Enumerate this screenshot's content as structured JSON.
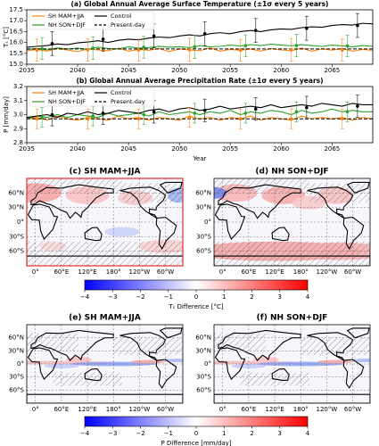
{
  "chart_data": [
    {
      "type": "line",
      "title": "(a) Global Annual Average Surface Temperature (±1σ every 5 years)",
      "y_label": "Tₛ [°C]",
      "x": [
        2035,
        2036,
        2037,
        2038,
        2039,
        2040,
        2041,
        2042,
        2043,
        2044,
        2045,
        2046,
        2047,
        2048,
        2049,
        2050,
        2051,
        2052,
        2053,
        2054,
        2055,
        2056,
        2057,
        2058,
        2059,
        2060,
        2061,
        2062,
        2063,
        2064,
        2065,
        2066,
        2067,
        2068,
        2069
      ],
      "xlim": [
        2035,
        2069
      ],
      "xticks": [
        2035,
        2040,
        2045,
        2050,
        2055,
        2060,
        2065
      ],
      "ylim": [
        15.0,
        17.5
      ],
      "yticks": [
        {
          "value": 15.0,
          "label": "15.0"
        },
        15.5,
        {
          "value": 16.0,
          "label": "16.0"
        },
        16.5,
        {
          "value": 17.0,
          "label": "17.0"
        },
        17.5
      ],
      "series": [
        {
          "name": "SH MAM+JJA",
          "color": "#ff7f0e",
          "values": [
            15.62,
            15.68,
            15.6,
            15.72,
            15.65,
            15.58,
            15.7,
            15.66,
            15.62,
            15.74,
            15.6,
            15.68,
            15.64,
            15.72,
            15.58,
            15.7,
            15.66,
            15.62,
            15.75,
            15.6,
            15.68,
            15.64,
            15.7,
            15.6,
            15.72,
            15.66,
            15.62,
            15.74,
            15.6,
            15.7,
            15.65,
            15.72,
            15.6,
            15.68,
            15.64
          ]
        },
        {
          "name": "NH SON+DJF",
          "color": "#2ca02c",
          "values": [
            15.68,
            15.72,
            15.66,
            15.75,
            15.7,
            15.74,
            15.68,
            15.78,
            15.72,
            15.7,
            15.8,
            15.74,
            15.76,
            15.82,
            15.78,
            15.8,
            15.76,
            15.85,
            15.8,
            15.82,
            15.88,
            15.84,
            15.9,
            15.86,
            15.92,
            15.88,
            15.85,
            15.9,
            15.86,
            15.82,
            15.88,
            15.84,
            15.8,
            15.86,
            15.82
          ]
        },
        {
          "name": "Control",
          "color": "#000000",
          "values": [
            15.78,
            15.82,
            15.86,
            15.93,
            15.9,
            15.98,
            16.02,
            16.08,
            16.0,
            16.1,
            16.15,
            16.12,
            16.2,
            16.25,
            16.22,
            16.3,
            16.35,
            16.3,
            16.4,
            16.45,
            16.4,
            16.5,
            16.55,
            16.5,
            16.58,
            16.62,
            16.6,
            16.68,
            16.72,
            16.7,
            16.78,
            16.82,
            16.8,
            16.88,
            16.85
          ]
        },
        {
          "name": "Present-day",
          "color": "#000000",
          "dashed": true,
          "values": [
            15.7,
            15.7,
            15.7,
            15.7,
            15.7,
            15.7,
            15.7,
            15.7,
            15.7,
            15.7,
            15.7,
            15.7,
            15.7,
            15.7,
            15.7,
            15.7,
            15.7,
            15.7,
            15.7,
            15.7,
            15.7,
            15.7,
            15.7,
            15.7,
            15.7,
            15.7,
            15.7,
            15.7,
            15.7,
            15.7,
            15.7,
            15.7,
            15.7,
            15.7,
            15.7
          ]
        }
      ],
      "errorbars": [
        {
          "color": "#ff7f0e",
          "x": [
            2036,
            2041,
            2046,
            2051,
            2056,
            2061,
            2066
          ],
          "values": [
            15.65,
            15.66,
            15.65,
            15.66,
            15.64,
            15.66,
            15.65
          ],
          "errors": [
            0.5,
            0.52,
            0.5,
            0.53,
            0.5,
            0.52,
            0.5
          ]
        },
        {
          "color": "#2ca02c",
          "x": [
            2036.5,
            2041.5,
            2046.5,
            2051.5,
            2056.5,
            2061.5,
            2066.5
          ],
          "values": [
            15.72,
            15.74,
            15.78,
            15.8,
            15.85,
            15.86,
            15.84
          ],
          "errors": [
            0.5,
            0.52,
            0.5,
            0.53,
            0.5,
            0.52,
            0.5
          ]
        },
        {
          "color": "#000000",
          "x": [
            2037.5,
            2042.5,
            2047.5,
            2052.5,
            2057.5,
            2062.5,
            2067.5
          ],
          "values": [
            15.95,
            16.15,
            16.3,
            16.4,
            16.55,
            16.65,
            16.78
          ],
          "errors": [
            0.55,
            0.55,
            0.55,
            0.55,
            0.55,
            0.55,
            0.55
          ]
        }
      ]
    },
    {
      "type": "line",
      "title": "(b) Global Annual Average Precipitation Rate (±1σ every 5 years)",
      "y_label": "P [mm/day]",
      "x_label": "Year",
      "x": [
        2035,
        2036,
        2037,
        2038,
        2039,
        2040,
        2041,
        2042,
        2043,
        2044,
        2045,
        2046,
        2047,
        2048,
        2049,
        2050,
        2051,
        2052,
        2053,
        2054,
        2055,
        2056,
        2057,
        2058,
        2059,
        2060,
        2061,
        2062,
        2063,
        2064,
        2065,
        2066,
        2067,
        2068,
        2069
      ],
      "xlim": [
        2035,
        2069
      ],
      "xticks": [
        2035,
        2040,
        2045,
        2050,
        2055,
        2060,
        2065
      ],
      "ylim": [
        2.8,
        3.2
      ],
      "yticks": [
        2.8,
        2.9,
        {
          "value": 3.0,
          "label": "3.0"
        },
        3.1,
        3.2
      ],
      "series": [
        {
          "name": "SH MAM+JJA",
          "color": "#ff7f0e",
          "values": [
            2.97,
            2.98,
            2.96,
            2.99,
            2.97,
            2.96,
            2.98,
            2.97,
            2.96,
            2.99,
            2.97,
            2.98,
            2.96,
            2.98,
            2.97,
            2.96,
            2.99,
            2.97,
            2.98,
            2.96,
            2.98,
            2.97,
            2.99,
            2.96,
            2.98,
            2.97,
            2.96,
            2.99,
            2.97,
            2.98,
            2.97,
            2.98,
            2.96,
            2.98,
            2.97
          ]
        },
        {
          "name": "NH SON+DJF",
          "color": "#2ca02c",
          "values": [
            2.97,
            2.99,
            2.98,
            3.0,
            2.98,
            3.0,
            2.99,
            2.98,
            3.01,
            2.99,
            3.0,
            3.01,
            2.99,
            3.02,
            3.0,
            3.01,
            3.02,
            3.0,
            3.02,
            3.01,
            3.03,
            3.0,
            3.02,
            3.01,
            3.03,
            3.02,
            3.0,
            3.03,
            3.01,
            3.02,
            3.04,
            3.02,
            3.03,
            3.02,
            3.02
          ]
        },
        {
          "name": "Control",
          "color": "#000000",
          "values": [
            2.98,
            2.99,
            3.0,
            2.98,
            3.01,
            3.0,
            3.02,
            3.0,
            3.01,
            3.03,
            3.02,
            3.01,
            3.03,
            3.04,
            3.02,
            3.04,
            3.05,
            3.03,
            3.04,
            3.06,
            3.04,
            3.05,
            3.06,
            3.05,
            3.07,
            3.05,
            3.06,
            3.07,
            3.06,
            3.08,
            3.07,
            3.06,
            3.08,
            3.07,
            3.07
          ]
        },
        {
          "name": "Present-day",
          "color": "#000000",
          "dashed": true,
          "values": [
            2.97,
            2.97,
            2.97,
            2.97,
            2.97,
            2.97,
            2.97,
            2.97,
            2.97,
            2.97,
            2.97,
            2.97,
            2.97,
            2.97,
            2.97,
            2.97,
            2.97,
            2.97,
            2.97,
            2.97,
            2.97,
            2.97,
            2.97,
            2.97,
            2.97,
            2.97,
            2.97,
            2.97,
            2.97,
            2.97,
            2.97,
            2.97,
            2.97,
            2.97,
            2.97
          ]
        }
      ],
      "errorbars": [
        {
          "color": "#ff7f0e",
          "x": [
            2036,
            2041,
            2046,
            2051,
            2056,
            2061,
            2066
          ],
          "values": [
            2.97,
            2.97,
            2.97,
            2.98,
            2.97,
            2.97,
            2.97
          ],
          "errors": [
            0.07,
            0.07,
            0.07,
            0.07,
            0.07,
            0.07,
            0.07
          ]
        },
        {
          "color": "#2ca02c",
          "x": [
            2036.5,
            2041.5,
            2046.5,
            2051.5,
            2056.5,
            2061.5,
            2066.5
          ],
          "values": [
            2.98,
            2.99,
            3.0,
            3.01,
            3.01,
            3.02,
            3.02
          ],
          "errors": [
            0.07,
            0.07,
            0.07,
            0.07,
            0.07,
            0.07,
            0.07
          ]
        },
        {
          "color": "#000000",
          "x": [
            2037.5,
            2042.5,
            2047.5,
            2052.5,
            2057.5,
            2062.5,
            2067.5
          ],
          "values": [
            3.0,
            3.01,
            3.02,
            3.03,
            3.04,
            3.05,
            3.06
          ],
          "errors": [
            0.08,
            0.08,
            0.08,
            0.08,
            0.08,
            0.08,
            0.08
          ]
        }
      ]
    },
    {
      "type": "map",
      "title": "(c) SH MAM+JJA",
      "lat_labels": [
        "60°N",
        "30°N",
        "0°",
        "30°S",
        "60°S"
      ],
      "lon_labels": [
        "0°",
        "60°E",
        "120°E",
        "180°",
        "120°W",
        "60°W"
      ]
    },
    {
      "type": "map",
      "title": "(d) NH SON+DJF",
      "lat_labels": [
        "60°N",
        "30°N",
        "0°",
        "30°S",
        "60°S"
      ],
      "lon_labels": [
        "0°",
        "60°E",
        "120°E",
        "180°",
        "120°W",
        "60°W"
      ]
    },
    {
      "type": "colorbar",
      "label": "Tₛ Difference [°C]",
      "xlim": [
        -4,
        4
      ],
      "xticks": [
        {
          "value": -4,
          "label": "−4"
        },
        {
          "value": -3,
          "label": "−3"
        },
        {
          "value": -2,
          "label": "−2"
        },
        {
          "value": -1,
          "label": "−1"
        },
        0,
        1,
        2,
        3,
        4
      ]
    },
    {
      "type": "map",
      "title": "(e) SH MAM+JJA",
      "lat_labels": [
        "60°N",
        "30°N",
        "0°",
        "30°S",
        "60°S"
      ],
      "lon_labels": [
        "0°",
        "60°E",
        "120°E",
        "180°",
        "120°W",
        "60°W"
      ]
    },
    {
      "type": "map",
      "title": "(f) NH SON+DJF",
      "lat_labels": [
        "60°N",
        "30°N",
        "0°",
        "30°S",
        "60°S"
      ],
      "lon_labels": [
        "0°",
        "60°E",
        "120°E",
        "180°",
        "120°W",
        "60°W"
      ]
    },
    {
      "type": "colorbar",
      "label": "P Difference [mm/day]",
      "xlim": [
        -4,
        4
      ],
      "xticks": [
        {
          "value": -4,
          "label": "−4"
        },
        {
          "value": -3,
          "label": "−3"
        },
        {
          "value": -2,
          "label": "−2"
        },
        {
          "value": -1,
          "label": "−1"
        },
        0,
        1,
        2,
        3,
        4
      ]
    }
  ]
}
